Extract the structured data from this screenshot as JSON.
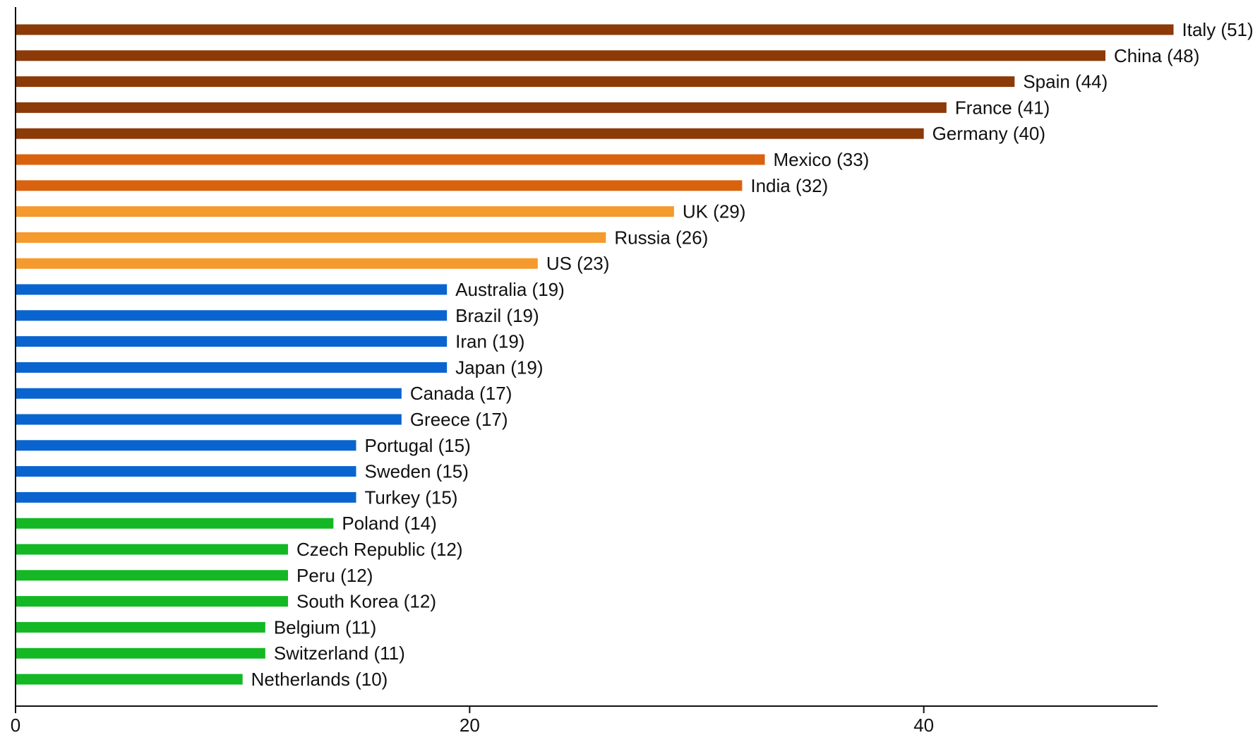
{
  "chart_data": {
    "type": "bar",
    "orientation": "horizontal",
    "title": "",
    "xlabel": "",
    "ylabel": "",
    "xlim": [
      0,
      50.3
    ],
    "x_ticks": [
      0,
      20,
      40
    ],
    "x_tick_labels": [
      "0",
      "20",
      "40"
    ],
    "grid": false,
    "legend": "none",
    "colors": {
      "dark_brown": "#8b3a08",
      "dark_orange": "#d9620f",
      "light_orange": "#f59a2c",
      "blue": "#0a64cf",
      "green": "#13b824"
    },
    "bars": [
      {
        "category": "Italy",
        "value": 51,
        "label": "Italy (51)",
        "color_group": "dark_brown"
      },
      {
        "category": "China",
        "value": 48,
        "label": "China (48)",
        "color_group": "dark_brown"
      },
      {
        "category": "Spain",
        "value": 44,
        "label": "Spain (44)",
        "color_group": "dark_brown"
      },
      {
        "category": "France",
        "value": 41,
        "label": "France (41)",
        "color_group": "dark_brown"
      },
      {
        "category": "Germany",
        "value": 40,
        "label": "Germany (40)",
        "color_group": "dark_brown"
      },
      {
        "category": "Mexico",
        "value": 33,
        "label": "Mexico (33)",
        "color_group": "dark_orange"
      },
      {
        "category": "India",
        "value": 32,
        "label": "India (32)",
        "color_group": "dark_orange"
      },
      {
        "category": "UK",
        "value": 29,
        "label": "UK (29)",
        "color_group": "light_orange"
      },
      {
        "category": "Russia",
        "value": 26,
        "label": "Russia (26)",
        "color_group": "light_orange"
      },
      {
        "category": "US",
        "value": 23,
        "label": "US (23)",
        "color_group": "light_orange"
      },
      {
        "category": "Australia",
        "value": 19,
        "label": "Australia (19)",
        "color_group": "blue"
      },
      {
        "category": "Brazil",
        "value": 19,
        "label": "Brazil (19)",
        "color_group": "blue"
      },
      {
        "category": "Iran",
        "value": 19,
        "label": "Iran (19)",
        "color_group": "blue"
      },
      {
        "category": "Japan",
        "value": 19,
        "label": "Japan (19)",
        "color_group": "blue"
      },
      {
        "category": "Canada",
        "value": 17,
        "label": "Canada (17)",
        "color_group": "blue"
      },
      {
        "category": "Greece",
        "value": 17,
        "label": "Greece (17)",
        "color_group": "blue"
      },
      {
        "category": "Portugal",
        "value": 15,
        "label": "Portugal (15)",
        "color_group": "blue"
      },
      {
        "category": "Sweden",
        "value": 15,
        "label": "Sweden (15)",
        "color_group": "blue"
      },
      {
        "category": "Turkey",
        "value": 15,
        "label": "Turkey (15)",
        "color_group": "blue"
      },
      {
        "category": "Poland",
        "value": 14,
        "label": "Poland (14)",
        "color_group": "green"
      },
      {
        "category": "Czech Republic",
        "value": 12,
        "label": "Czech Republic (12)",
        "color_group": "green"
      },
      {
        "category": "Peru",
        "value": 12,
        "label": "Peru (12)",
        "color_group": "green"
      },
      {
        "category": "South Korea",
        "value": 12,
        "label": "South Korea (12)",
        "color_group": "green"
      },
      {
        "category": "Belgium",
        "value": 11,
        "label": "Belgium (11)",
        "color_group": "green"
      },
      {
        "category": "Switzerland",
        "value": 11,
        "label": "Switzerland (11)",
        "color_group": "green"
      },
      {
        "category": "Netherlands",
        "value": 10,
        "label": "Netherlands (10)",
        "color_group": "green"
      }
    ]
  }
}
